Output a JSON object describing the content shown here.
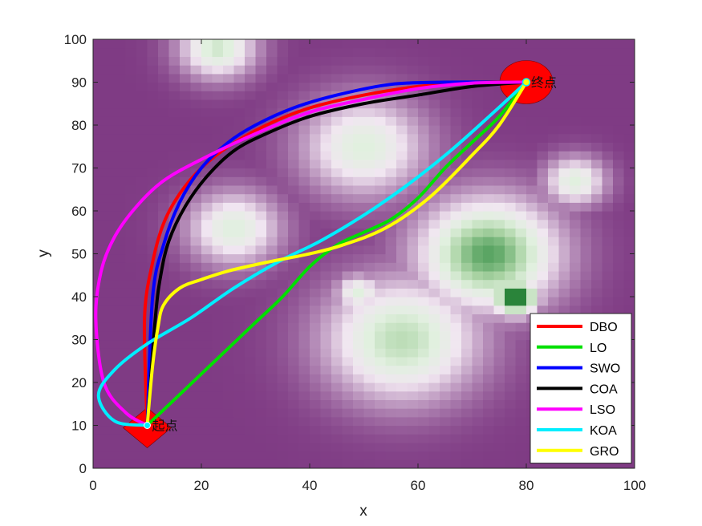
{
  "chart_data": {
    "type": "line",
    "title": "",
    "xlabel": "x",
    "ylabel": "y",
    "xlim": [
      0,
      100
    ],
    "ylim": [
      0,
      100
    ],
    "xticks": [
      0,
      20,
      40,
      60,
      80,
      100
    ],
    "yticks": [
      0,
      10,
      20,
      30,
      40,
      50,
      60,
      70,
      80,
      90,
      100
    ],
    "grid": false,
    "legend_position": "bottom-right",
    "background": {
      "type": "heatmap",
      "base_color": "#7f3b84",
      "peak_color": "#1e6b2c",
      "gradient": [
        "#7f3b84",
        "#f1e6f1",
        "#e1f0df",
        "#a9d3a3",
        "#2d8a3e",
        "#1a6b2a"
      ],
      "peaks": [
        {
          "x": 23,
          "y": 98,
          "h": 0.55,
          "r": 5
        },
        {
          "x": 50,
          "y": 75,
          "h": 0.5,
          "r": 8
        },
        {
          "x": 26,
          "y": 56,
          "h": 0.5,
          "r": 6
        },
        {
          "x": 89,
          "y": 67,
          "h": 0.5,
          "r": 4
        },
        {
          "x": 73,
          "y": 50,
          "h": 0.78,
          "r": 9
        },
        {
          "x": 78,
          "y": 40,
          "h": 0.98,
          "r": 3
        },
        {
          "x": 57,
          "y": 30,
          "h": 0.6,
          "r": 10
        },
        {
          "x": 49,
          "y": 41,
          "h": 0.5,
          "r": 3
        }
      ]
    },
    "start": {
      "x": 10,
      "y": 10,
      "label": "起点",
      "shape": "diamond",
      "color": "#ff0000"
    },
    "goal": {
      "x": 80,
      "y": 90,
      "label": "终点",
      "shape": "circle",
      "color": "#ff0000"
    },
    "series": [
      {
        "name": "DBO",
        "color": "#ff0000",
        "x": [
          10,
          9.5,
          11,
          13,
          16,
          20,
          25,
          32,
          40,
          50,
          60,
          70,
          80
        ],
        "y": [
          10,
          35,
          48,
          57,
          64,
          70,
          75,
          80,
          84,
          87,
          89,
          90,
          90
        ]
      },
      {
        "name": "LO",
        "color": "#00e000",
        "x": [
          10,
          15,
          20,
          25,
          30,
          35,
          40,
          45,
          50,
          55,
          60,
          65,
          70,
          75,
          80
        ],
        "y": [
          10,
          16,
          22,
          28,
          34,
          40,
          47,
          52,
          55,
          58,
          63,
          70,
          76,
          82,
          90
        ]
      },
      {
        "name": "SWO",
        "color": "#0000ff",
        "x": [
          10,
          11,
          13,
          16,
          20,
          25,
          30,
          37,
          45,
          55,
          65,
          75,
          80
        ],
        "y": [
          10,
          40,
          52,
          62,
          70,
          76,
          80,
          84,
          87,
          89.5,
          90,
          90,
          90
        ]
      },
      {
        "name": "COA",
        "color": "#000000",
        "x": [
          10,
          11.5,
          12.5,
          14,
          17,
          21,
          26,
          32,
          40,
          50,
          60,
          70,
          80
        ],
        "y": [
          10,
          35,
          45,
          53,
          61,
          68,
          74,
          78,
          82,
          85,
          87,
          89,
          90
        ]
      },
      {
        "name": "LSO",
        "color": "#ff00ff",
        "x": [
          10,
          6,
          2,
          0.5,
          1.5,
          4,
          8,
          13,
          20,
          30,
          40,
          50,
          60,
          70,
          80
        ],
        "y": [
          10,
          13,
          20,
          35,
          46,
          54,
          61,
          67,
          72,
          78,
          83,
          86,
          88.5,
          89.8,
          90
        ]
      },
      {
        "name": "KOA",
        "color": "#00eeff",
        "x": [
          10,
          4,
          1,
          4,
          10,
          18,
          26,
          34,
          42,
          50,
          58,
          66,
          74,
          80
        ],
        "y": [
          10,
          11,
          17,
          23,
          29,
          35,
          42,
          48,
          53,
          59,
          66,
          74,
          83,
          90
        ]
      },
      {
        "name": "GRO",
        "color": "#ffff00",
        "x": [
          10,
          11,
          12,
          13,
          16,
          20,
          25,
          32,
          40,
          46,
          54,
          62,
          70,
          75,
          80
        ],
        "y": [
          10,
          24,
          33,
          38,
          42,
          44,
          46,
          48,
          50,
          52,
          56,
          63,
          73,
          80,
          90
        ]
      }
    ]
  }
}
